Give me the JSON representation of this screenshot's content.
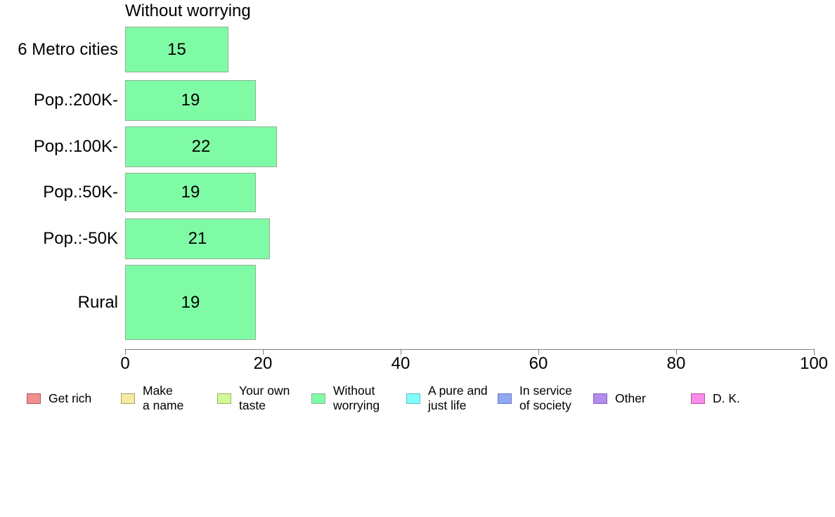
{
  "chart_data": {
    "type": "bar",
    "orientation": "horizontal",
    "title": "Without worrying",
    "categories": [
      "6 Metro cities",
      "Pop.:200K-",
      "Pop.:100K-",
      "Pop.:50K-",
      "Pop.:-50K",
      "Rural"
    ],
    "values": [
      15,
      19,
      22,
      19,
      21,
      19
    ],
    "value_labels_shown": true,
    "xlim": [
      0,
      100
    ],
    "x_ticks": [
      0,
      20,
      40,
      60,
      80,
      100
    ],
    "grid": false,
    "bar_fill": "#80fba5",
    "bar_border": "#8fb096",
    "legend_position": "bottom",
    "legend": [
      {
        "label": "Get rich",
        "lines": [
          "Get rich"
        ],
        "fill": "#f38e8e",
        "border": "#a65959"
      },
      {
        "label": "Make a name",
        "lines": [
          "Make",
          "a name"
        ],
        "fill": "#f6e9a2",
        "border": "#ada05c"
      },
      {
        "label": "Your own taste",
        "lines": [
          "Your own",
          "taste"
        ],
        "fill": "#d0fa93",
        "border": "#95b567"
      },
      {
        "label": "Without worrying",
        "lines": [
          "Without",
          "worrying"
        ],
        "fill": "#80fba5",
        "border": "#8fb096"
      },
      {
        "label": "A pure and just life",
        "lines": [
          "A pure and",
          "just life"
        ],
        "fill": "#80fefe",
        "border": "#63bebe"
      },
      {
        "label": "In service of society",
        "lines": [
          "In service",
          "of society"
        ],
        "fill": "#8fa8f0",
        "border": "#6e79c8"
      },
      {
        "label": "Other",
        "lines": [
          "Other"
        ],
        "fill": "#b38cec",
        "border": "#8763b8"
      },
      {
        "label": "D. K.",
        "lines": [
          "D. K."
        ],
        "fill": "#fb8ce9",
        "border": "#b357a1"
      }
    ]
  }
}
